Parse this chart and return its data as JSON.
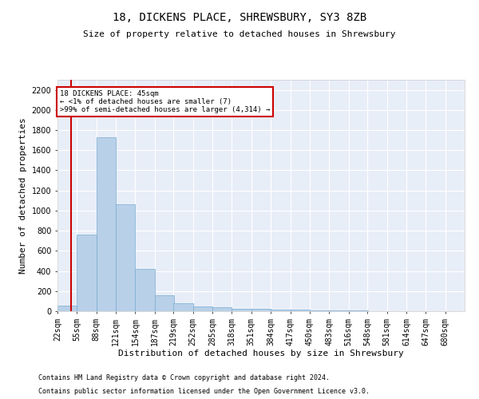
{
  "title": "18, DICKENS PLACE, SHREWSBURY, SY3 8ZB",
  "subtitle": "Size of property relative to detached houses in Shrewsbury",
  "xlabel": "Distribution of detached houses by size in Shrewsbury",
  "ylabel": "Number of detached properties",
  "footnote1": "Contains HM Land Registry data © Crown copyright and database right 2024.",
  "footnote2": "Contains public sector information licensed under the Open Government Licence v3.0.",
  "annotation_title": "18 DICKENS PLACE: 45sqm",
  "annotation_line2": "← <1% of detached houses are smaller (7)",
  "annotation_line3": ">99% of semi-detached houses are larger (4,314) →",
  "bar_color": "#b8d0e8",
  "bar_edge_color": "#7aacd0",
  "highlight_color": "#cc0000",
  "annotation_box_color": "#cc0000",
  "background_color": "#e8eef8",
  "ylim": [
    0,
    2300
  ],
  "yticks": [
    0,
    200,
    400,
    600,
    800,
    1000,
    1200,
    1400,
    1600,
    1800,
    2000,
    2200
  ],
  "bin_labels": [
    "22sqm",
    "55sqm",
    "88sqm",
    "121sqm",
    "154sqm",
    "187sqm",
    "219sqm",
    "252sqm",
    "285sqm",
    "318sqm",
    "351sqm",
    "384sqm",
    "417sqm",
    "450sqm",
    "483sqm",
    "516sqm",
    "548sqm",
    "581sqm",
    "614sqm",
    "647sqm",
    "680sqm"
  ],
  "bin_edges": [
    22,
    55,
    88,
    121,
    154,
    187,
    219,
    252,
    285,
    318,
    351,
    384,
    417,
    450,
    483,
    516,
    548,
    581,
    614,
    647,
    680
  ],
  "bar_heights": [
    55,
    760,
    1730,
    1060,
    420,
    155,
    80,
    45,
    40,
    25,
    20,
    15,
    15,
    8,
    5,
    4,
    3,
    2,
    2,
    1,
    1
  ],
  "property_sqm": 45,
  "title_fontsize": 10,
  "subtitle_fontsize": 8,
  "ylabel_fontsize": 8,
  "xlabel_fontsize": 8,
  "tick_fontsize": 7,
  "footnote_fontsize": 6
}
